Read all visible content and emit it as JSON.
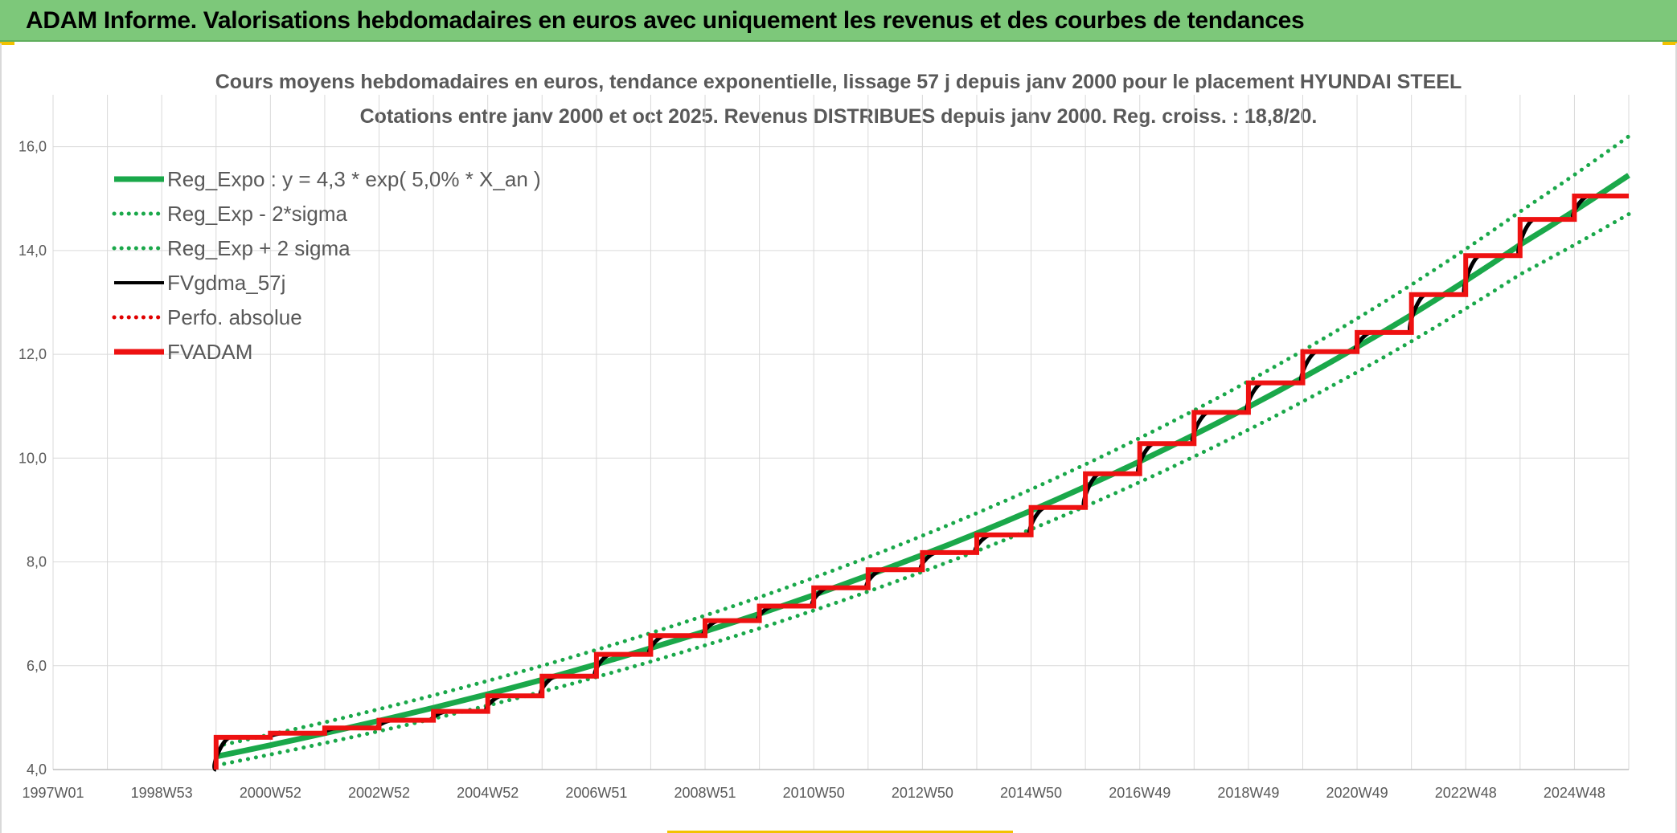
{
  "banner": {
    "title": "ADAM Informe. Valorisations hebdomadaires en euros avec uniquement les revenus et des courbes de tendances"
  },
  "colors": {
    "banner_bg": "#7dc87a",
    "reg_expo": "#1aa84a",
    "band": "#1aa84a",
    "fvgdma": "#000000",
    "perfo": "#e00000",
    "fvadam": "#ee1111",
    "grid": "#d9d9d9",
    "accent_corner": "#f2c200"
  },
  "chart_data": {
    "type": "line",
    "title_line1": "Cours moyens hebdomadaires en euros, tendance exponentielle, lissage 57 j depuis janv 2000 pour le placement HYUNDAI STEEL",
    "title_line2": "Cotations entre janv 2000 et oct 2025. Revenus DISTRIBUES depuis janv 2000. Reg. croiss. : 18,8/20.",
    "xlabel": "",
    "ylabel": "",
    "x_tick_labels": [
      "1997W01",
      "1998W53",
      "2000W52",
      "2002W52",
      "2004W52",
      "2006W51",
      "2008W51",
      "2010W50",
      "2012W50",
      "2014W50",
      "2016W49",
      "2018W49",
      "2020W49",
      "2022W48",
      "2024W48"
    ],
    "x_tick_years": [
      1997,
      1999,
      2001,
      2003,
      2005,
      2007,
      2009,
      2011,
      2013,
      2015,
      2017,
      2019,
      2021,
      2023,
      2025
    ],
    "xlim": [
      1997.0,
      2026.0
    ],
    "ylim": [
      4.0,
      17.0
    ],
    "y_ticks": [
      4.0,
      6.0,
      8.0,
      10.0,
      12.0,
      14.0,
      16.0
    ],
    "y_tick_labels": [
      "4,0",
      "6,0",
      "8,0",
      "10,0",
      "12,0",
      "14,0",
      "16,0"
    ],
    "grid": true,
    "legend_position": "top-left",
    "legend": [
      {
        "label": "Reg_Expo : y = 4,3 * exp( 5,0% *  X_an )",
        "style": "solid-thick",
        "color": "#1aa84a"
      },
      {
        "label": "Reg_Exp - 2*sigma",
        "style": "dotted",
        "color": "#1aa84a"
      },
      {
        "label": "Reg_Exp + 2 sigma",
        "style": "dotted",
        "color": "#1aa84a"
      },
      {
        "label": "FVgdma_57j",
        "style": "solid",
        "color": "#000000"
      },
      {
        "label": "Perfo. absolue",
        "style": "dotted",
        "color": "#e00000"
      },
      {
        "label": "FVADAM",
        "style": "solid-thick",
        "color": "#ee1111"
      }
    ],
    "series": [
      {
        "name": "Reg_Expo : y = 4,3 * exp( 5,0% *  X_an )",
        "x": [
          2000.0,
          2002.0,
          2004.0,
          2006.0,
          2008.0,
          2010.0,
          2012.0,
          2014.0,
          2016.0,
          2018.0,
          2020.0,
          2022.0,
          2024.0,
          2026.0
        ],
        "values": [
          4.25,
          4.7,
          5.19,
          5.73,
          6.34,
          7.0,
          7.74,
          8.55,
          9.45,
          10.45,
          11.55,
          12.76,
          14.11,
          15.45
        ]
      },
      {
        "name": "Reg_Exp - 2*sigma",
        "x": [
          2000.0,
          2002.0,
          2004.0,
          2006.0,
          2008.0,
          2010.0,
          2012.0,
          2014.0,
          2016.0,
          2018.0,
          2020.0,
          2022.0,
          2024.0,
          2026.0
        ],
        "values": [
          4.08,
          4.51,
          4.98,
          5.5,
          6.08,
          6.72,
          7.43,
          8.21,
          9.07,
          10.03,
          11.09,
          12.25,
          13.54,
          14.7
        ]
      },
      {
        "name": "Reg_Exp + 2 sigma",
        "x": [
          2000.0,
          2002.0,
          2004.0,
          2006.0,
          2008.0,
          2010.0,
          2012.0,
          2014.0,
          2016.0,
          2018.0,
          2020.0,
          2022.0,
          2024.0,
          2026.0
        ],
        "values": [
          4.45,
          4.91,
          5.43,
          6.0,
          6.63,
          7.32,
          8.09,
          8.94,
          9.88,
          10.92,
          12.07,
          13.34,
          14.75,
          16.2
        ]
      },
      {
        "name": "FVADAM",
        "step_x": [
          2000.0,
          2001.0,
          2002.0,
          2003.0,
          2004.0,
          2005.0,
          2006.0,
          2007.0,
          2008.0,
          2009.0,
          2010.0,
          2011.0,
          2012.0,
          2013.0,
          2014.0,
          2015.0,
          2016.0,
          2017.0,
          2018.0,
          2019.0,
          2020.0,
          2021.0,
          2022.0,
          2023.0,
          2024.0,
          2025.0
        ],
        "step_values": [
          4.62,
          4.7,
          4.8,
          4.95,
          5.12,
          5.42,
          5.8,
          6.22,
          6.58,
          6.87,
          7.15,
          7.5,
          7.85,
          8.18,
          8.52,
          9.05,
          9.7,
          10.28,
          10.88,
          11.45,
          12.05,
          12.42,
          13.15,
          13.9,
          14.6,
          15.05
        ],
        "end_x": 2026.0,
        "start_value": 4.0
      }
    ]
  }
}
